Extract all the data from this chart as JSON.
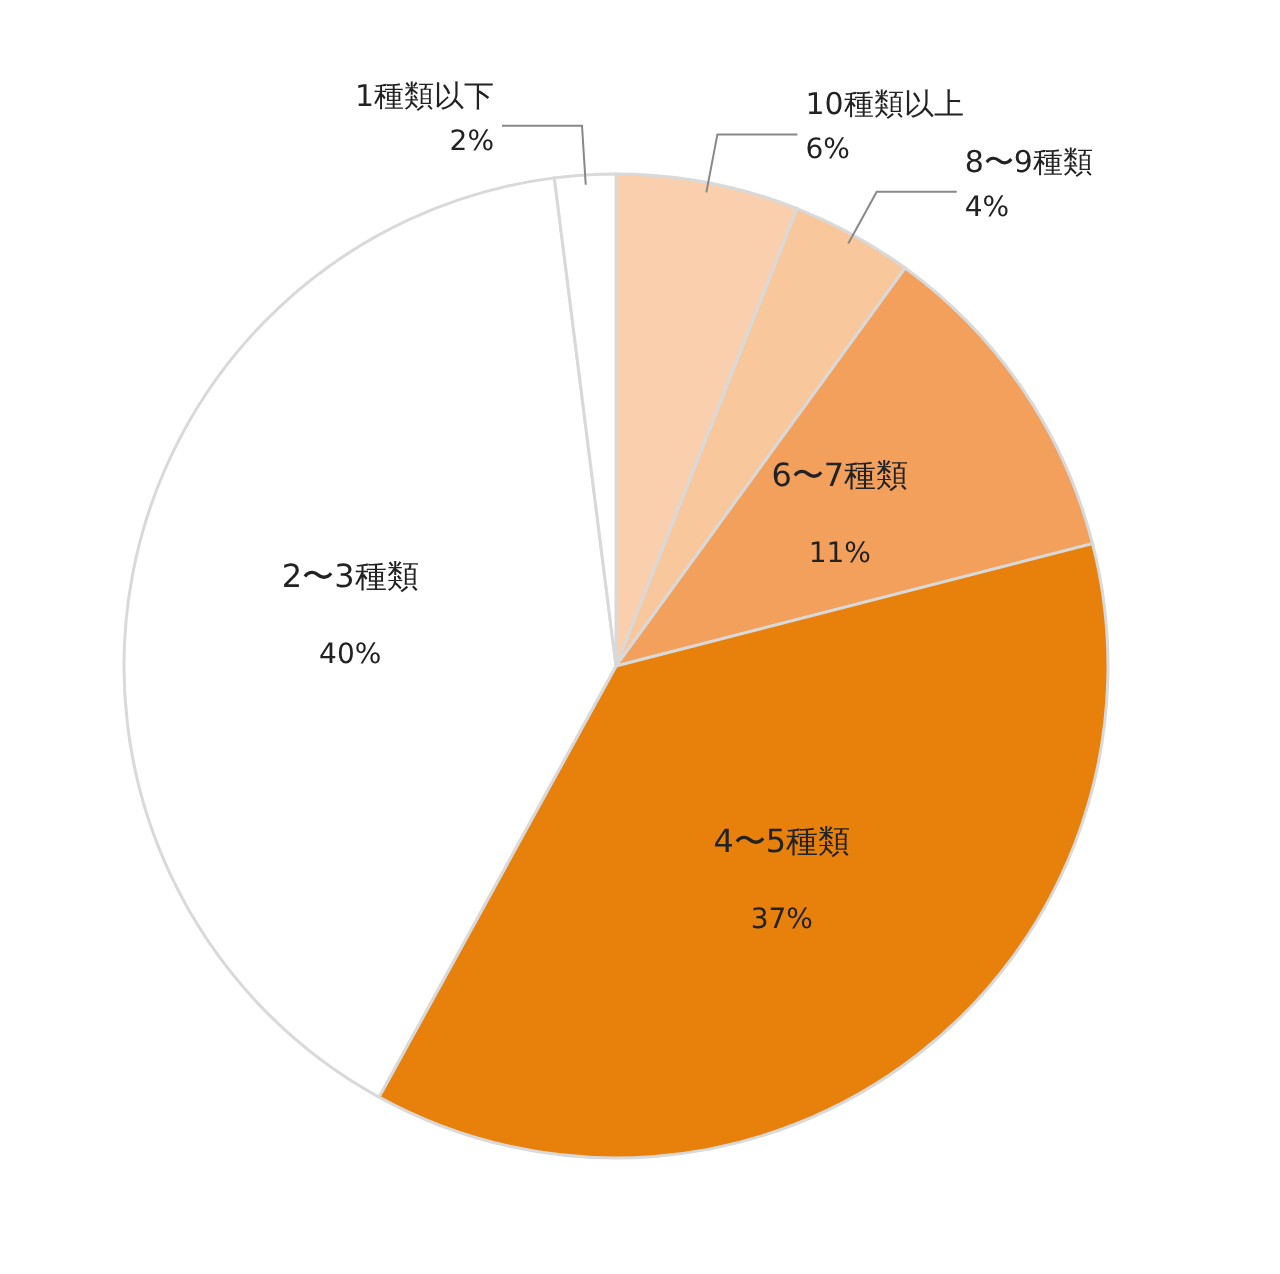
{
  "chart_data": {
    "type": "pie",
    "categories": [
      "10種類以上",
      "8〜9種類",
      "6〜7種類",
      "4〜5種類",
      "2〜3種類",
      "1種類以下"
    ],
    "values": [
      6,
      4,
      11,
      37,
      40,
      2
    ],
    "value_labels": [
      "6%",
      "4%",
      "11%",
      "37%",
      "40%",
      "2%"
    ],
    "colors": [
      "#f9cfad",
      "#f8c79c",
      "#f2a05c",
      "#e8800c",
      "#ffffff",
      "#ffffff"
    ]
  }
}
